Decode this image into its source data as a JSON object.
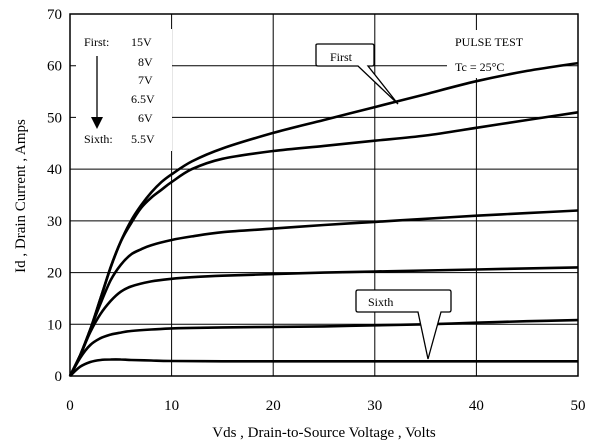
{
  "chart_data": {
    "type": "line",
    "title": "",
    "xlabel": "Vds , Drain-to-Source Voltage , Volts",
    "ylabel": "Id , Drain Current , Amps",
    "xlim": [
      0,
      50
    ],
    "ylim": [
      0,
      70
    ],
    "xticks": [
      "0",
      "10",
      "20",
      "30",
      "40",
      "50"
    ],
    "yticks": [
      "0",
      "10",
      "20",
      "30",
      "40",
      "50",
      "60",
      "70"
    ],
    "grid": true,
    "series": [
      {
        "name": "First",
        "x": [
          0,
          1,
          2,
          3,
          4,
          5,
          6,
          7,
          8,
          9,
          10,
          12,
          15,
          20,
          25,
          30,
          35,
          40,
          45,
          50
        ],
        "values": [
          0,
          4,
          9,
          15,
          21,
          26,
          30,
          33,
          35.5,
          37.5,
          39,
          41.5,
          44,
          47,
          49.5,
          52,
          54.5,
          57,
          59,
          60.5
        ]
      },
      {
        "x": [
          0,
          1,
          2,
          3,
          4,
          5,
          6,
          7,
          8,
          9,
          10,
          12,
          15,
          20,
          25,
          30,
          35,
          40,
          45,
          50
        ],
        "values": [
          0,
          4,
          9,
          15,
          21,
          26,
          29.5,
          32.5,
          34.5,
          36,
          37.5,
          40,
          42,
          43.5,
          44.5,
          45.5,
          46.5,
          48,
          49.5,
          51
        ]
      },
      {
        "x": [
          0,
          1,
          2,
          3,
          4,
          5,
          6,
          7,
          8,
          10,
          12,
          15,
          20,
          25,
          30,
          35,
          40,
          45,
          50
        ],
        "values": [
          0,
          4,
          9,
          14,
          18.5,
          21.5,
          23.5,
          24.5,
          25.3,
          26.3,
          27,
          27.8,
          28.5,
          29.2,
          29.8,
          30.4,
          31,
          31.5,
          32
        ]
      },
      {
        "x": [
          0,
          1,
          2,
          3,
          4,
          5,
          6,
          8,
          10,
          12,
          15,
          20,
          25,
          30,
          35,
          40,
          45,
          50
        ],
        "values": [
          0,
          4,
          8.5,
          12,
          14.5,
          16.3,
          17.3,
          18.3,
          18.8,
          19.1,
          19.4,
          19.7,
          20,
          20.2,
          20.4,
          20.6,
          20.8,
          21
        ]
      },
      {
        "x": [
          0,
          1,
          2,
          3,
          4,
          5,
          6,
          8,
          10,
          12,
          15,
          20,
          25,
          30,
          35,
          40,
          45,
          50
        ],
        "values": [
          0,
          3.5,
          6,
          7.3,
          8,
          8.4,
          8.7,
          9,
          9.2,
          9.3,
          9.4,
          9.5,
          9.6,
          9.8,
          10,
          10.3,
          10.6,
          10.8
        ]
      },
      {
        "name": "Sixth",
        "x": [
          0,
          1,
          2,
          3,
          4,
          5,
          6,
          8,
          10,
          15,
          20,
          30,
          40,
          50
        ],
        "values": [
          0,
          1.8,
          2.7,
          3.1,
          3.2,
          3.2,
          3.1,
          3,
          2.9,
          2.85,
          2.85,
          2.85,
          2.85,
          2.85
        ]
      }
    ]
  },
  "annotations": {
    "first_label": "First:",
    "sixth_label": "Sixth:",
    "gate_voltages": [
      "15V",
      "8V",
      "7V",
      "6.5V",
      "6V",
      "5.5V"
    ],
    "pulse_test": "PULSE    TEST",
    "tc": "Tc = 25°C",
    "callout_first": "First",
    "callout_sixth": "Sixth"
  }
}
